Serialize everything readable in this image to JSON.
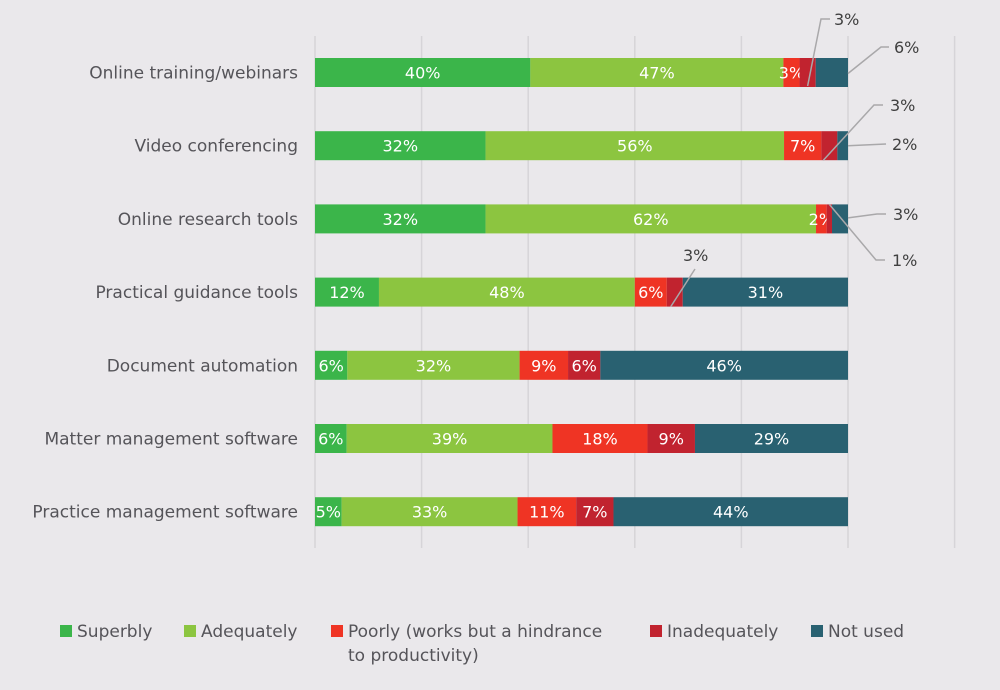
{
  "chart_data": {
    "type": "bar",
    "orientation": "horizontal",
    "stacked": true,
    "categories": [
      "Online training/webinars",
      "Video conferencing",
      "Online research tools",
      "Practical guidance tools",
      "Document automation",
      "Matter management software",
      "Practice management software"
    ],
    "series": [
      {
        "name": "Superbly",
        "color": "#3bb54a",
        "values": [
          40,
          32,
          32,
          12,
          6,
          6,
          5
        ],
        "labels": [
          "40%",
          "32%",
          "32%",
          "12%",
          "6%",
          "6%",
          "5%"
        ]
      },
      {
        "name": "Adequately",
        "color": "#8cc540",
        "values": [
          47,
          56,
          62,
          48,
          32,
          39,
          33
        ],
        "labels": [
          "47%",
          "56%",
          "62%",
          "48%",
          "32%",
          "39%",
          "33%"
        ]
      },
      {
        "name": "Poorly (works but a hindrance to productivity)",
        "color": "#ef3424",
        "values": [
          3,
          7,
          2,
          6,
          9,
          18,
          11
        ],
        "labels": [
          "3%",
          "7%",
          "2%",
          "6%",
          "9%",
          "18%",
          "11%"
        ]
      },
      {
        "name": "Inadequately",
        "color": "#c1232f",
        "values": [
          3,
          3,
          1,
          3,
          6,
          9,
          7
        ],
        "labels": [
          "3%",
          "3%",
          "1%",
          "3%",
          "6%",
          "9%",
          "7%"
        ]
      },
      {
        "name": "Not used",
        "color": "#296171",
        "values": [
          6,
          2,
          3,
          31,
          46,
          29,
          44
        ],
        "labels": [
          "6%",
          "2%",
          "3%",
          "31%",
          "46%",
          "29%",
          "44%"
        ]
      }
    ],
    "xlim": [
      0,
      120
    ],
    "grid": true,
    "legend_position": "bottom",
    "title": "",
    "xlabel": "",
    "ylabel": ""
  },
  "legend": {
    "items": [
      {
        "label": "Superbly",
        "color": "#3bb54a"
      },
      {
        "label": "Adequately",
        "color": "#8cc540"
      },
      {
        "label_line1": "Poorly (works but a hindrance",
        "label_line2": "to productivity)",
        "color": "#ef3424"
      },
      {
        "label": "Inadequately",
        "color": "#c1232f"
      },
      {
        "label": "Not used",
        "color": "#296171"
      }
    ]
  }
}
